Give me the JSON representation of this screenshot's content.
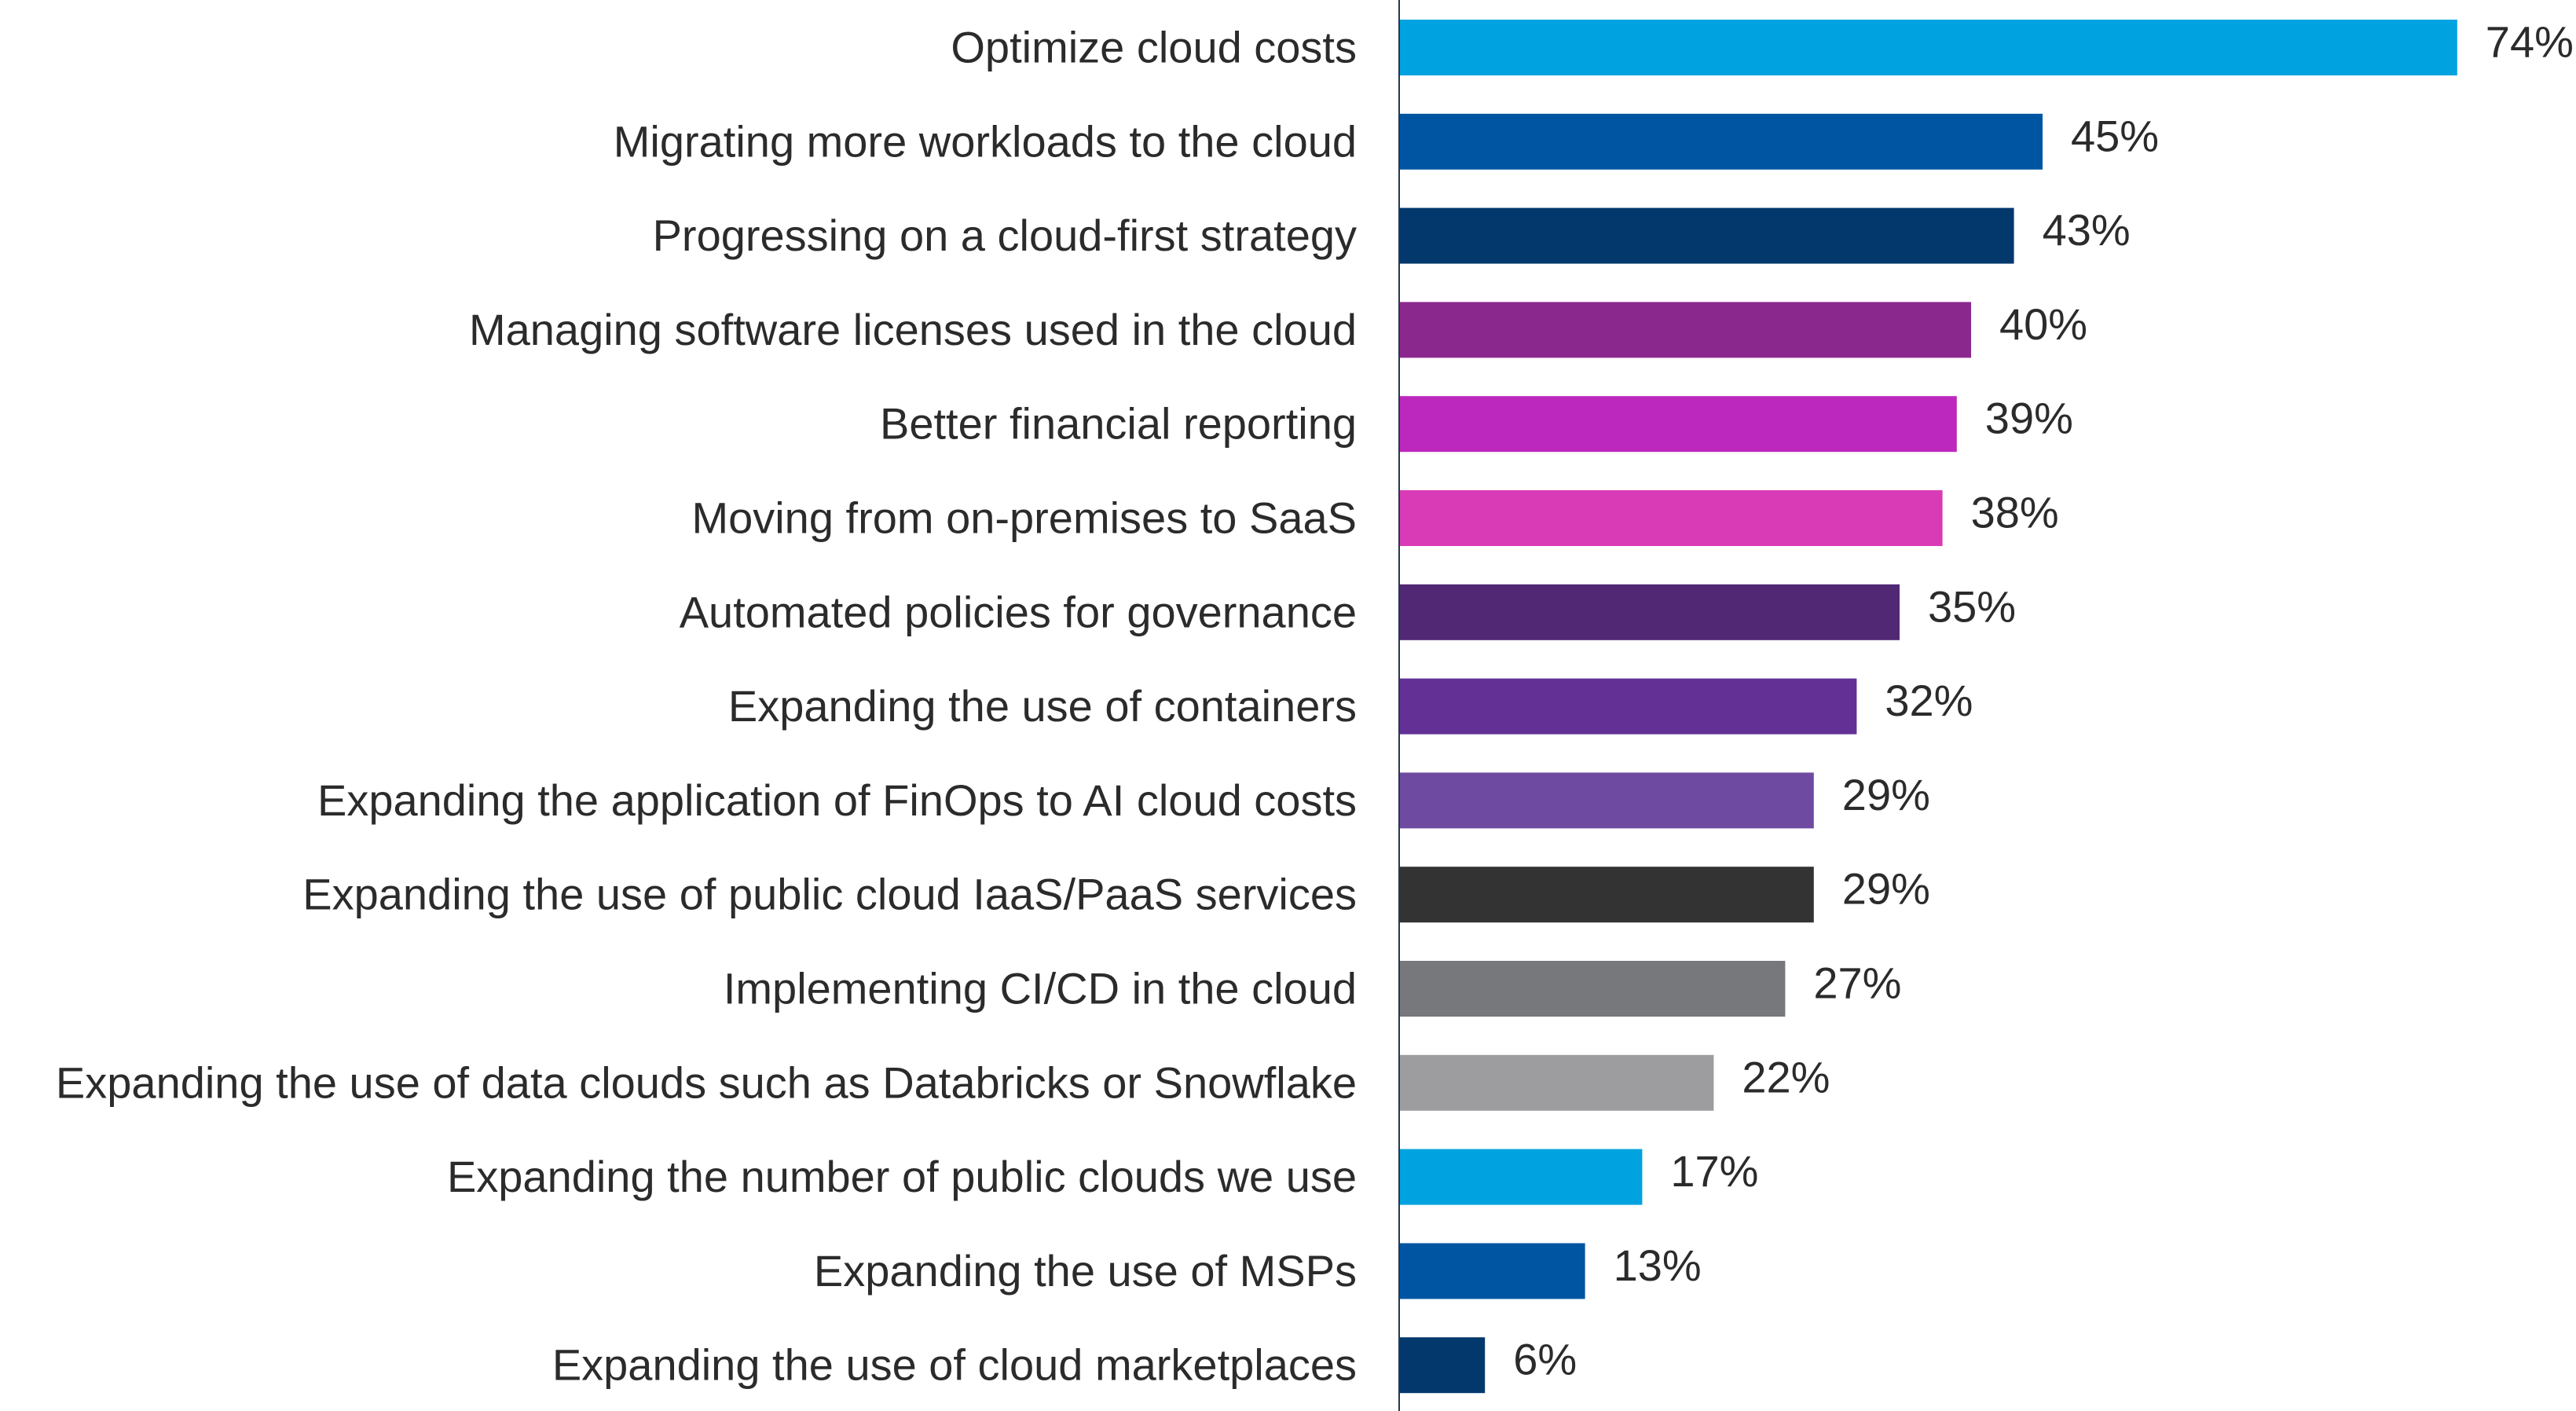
{
  "chart_data": {
    "type": "bar",
    "orientation": "horizontal",
    "title": "",
    "xlabel": "",
    "ylabel": "",
    "xlim": [
      0,
      80
    ],
    "grid": false,
    "value_suffix": "%",
    "categories": [
      "Optimize cloud costs",
      "Migrating more workloads to the cloud",
      "Progressing on a cloud-first strategy",
      "Managing software licenses used in the cloud",
      "Better financial reporting",
      "Moving from on-premises to SaaS",
      "Automated policies for governance",
      "Expanding the use of containers",
      "Expanding the application of FinOps to AI cloud costs",
      "Expanding the use of public cloud IaaS/PaaS services",
      "Implementing CI/CD in the cloud",
      "Expanding the use of data clouds such as Databricks or Snowflake",
      "Expanding the number of public clouds we use",
      "Expanding the use of MSPs",
      "Expanding the use of cloud marketplaces"
    ],
    "values": [
      74,
      45,
      43,
      40,
      39,
      38,
      35,
      32,
      29,
      29,
      27,
      22,
      17,
      13,
      6
    ],
    "labels": [
      "74%",
      "45%",
      "43%",
      "40%",
      "39%",
      "38%",
      "35%",
      "32%",
      "29%",
      "29%",
      "27%",
      "22%",
      "17%",
      "13%",
      "6%"
    ],
    "colors": [
      "#00a3e0",
      "#0055a2",
      "#03386c",
      "#8b288e",
      "#bc28bd",
      "#d93ab6",
      "#512874",
      "#633195",
      "#6e4aa0",
      "#333333",
      "#77787b",
      "#9d9d9f",
      "#00a3e0",
      "#0055a2",
      "#03386c"
    ],
    "axis_color": "#2a3550"
  }
}
